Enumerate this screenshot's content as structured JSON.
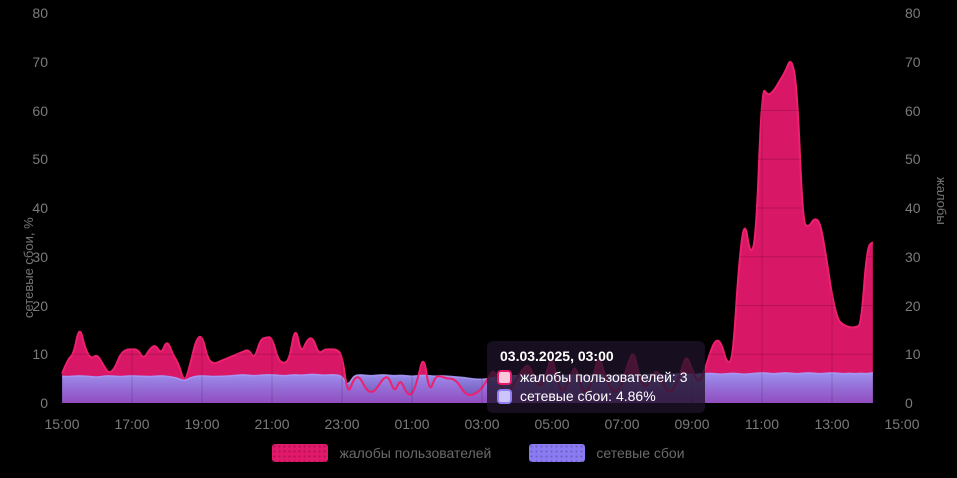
{
  "chart_data": {
    "type": "area",
    "x_start": "15:00",
    "x_step_minutes": 10,
    "x_tick_labels": [
      "15:00",
      "17:00",
      "19:00",
      "21:00",
      "23:00",
      "01:00",
      "03:00",
      "05:00",
      "07:00",
      "09:00",
      "11:00",
      "13:00",
      "15:00"
    ],
    "left_axis": {
      "label": "сетевые сбои, %",
      "min": 0,
      "max": 80,
      "ticks": [
        0,
        10,
        20,
        30,
        40,
        50,
        60,
        70,
        80
      ]
    },
    "right_axis": {
      "label": "жалобы",
      "min": 0,
      "max": 80,
      "ticks": [
        0,
        10,
        20,
        30,
        40,
        50,
        60,
        70,
        80
      ]
    },
    "grid": true,
    "legend_position": "bottom",
    "series": [
      {
        "name": "жалобы пользователей",
        "axis": "right",
        "color": "#e2186b",
        "line_color": "#ef206e",
        "values": [
          6,
          9,
          10,
          16,
          11,
          9,
          10,
          8,
          6,
          7,
          10,
          11,
          11,
          11,
          9,
          11,
          12,
          10,
          13,
          10,
          8,
          4,
          8,
          13,
          14,
          9,
          8,
          8.5,
          9,
          9.5,
          10,
          10.5,
          11,
          9,
          13,
          13.5,
          13.5,
          9,
          8,
          9,
          16,
          10,
          13,
          13.5,
          10,
          11,
          11,
          11,
          10,
          1.5,
          5,
          5.5,
          3,
          2,
          3,
          5,
          5.5,
          2,
          5,
          2,
          1.5,
          5,
          10,
          2,
          5.5,
          5.5,
          5,
          5,
          4,
          2,
          1.5,
          2,
          3,
          5,
          7,
          4,
          2,
          3,
          5,
          7,
          8,
          5,
          3,
          6,
          10,
          4,
          2,
          5,
          8,
          3,
          2,
          5,
          10,
          6,
          3,
          2,
          4,
          8,
          11,
          5,
          3,
          5,
          7,
          4,
          2,
          3,
          6,
          10,
          7,
          4,
          6,
          10,
          13,
          12.5,
          8,
          9,
          28,
          38,
          30,
          34,
          65,
          63,
          64,
          66,
          68,
          71,
          65,
          37,
          36,
          38,
          37,
          30,
          22,
          17,
          16,
          15.5,
          15.5,
          16,
          32,
          33
        ]
      },
      {
        "name": "сетевые сбои",
        "axis": "left",
        "unit": "%",
        "color": "#9a90e8",
        "line_color": "#a79bf7",
        "values": [
          5.5,
          5.4,
          5.5,
          5.6,
          5.5,
          5.4,
          5.3,
          5.5,
          5.6,
          5.5,
          5.4,
          5.5,
          5.6,
          5.5,
          5.5,
          5.4,
          5.5,
          5.6,
          5.5,
          5.3,
          5.0,
          4.5,
          5.2,
          5.5,
          5.6,
          5.5,
          5.4,
          5.5,
          5.5,
          5.6,
          5.7,
          5.8,
          5.7,
          5.6,
          5.7,
          5.8,
          5.8,
          5.7,
          5.6,
          5.7,
          5.8,
          5.7,
          5.8,
          5.9,
          5.8,
          5.7,
          5.8,
          5.8,
          5.5,
          3.5,
          5.6,
          5.8,
          5.7,
          5.6,
          5.7,
          5.8,
          5.7,
          5.6,
          5.7,
          5.6,
          5.5,
          5.6,
          5.7,
          5.6,
          5.5,
          5.6,
          5.5,
          5.4,
          5.3,
          5.2,
          5.0,
          4.9,
          4.86,
          5.0,
          5.2,
          5.4,
          5.5,
          5.6,
          5.6,
          5.7,
          5.6,
          5.5,
          5.6,
          5.7,
          5.8,
          5.7,
          5.6,
          5.7,
          5.8,
          5.7,
          5.6,
          5.7,
          5.8,
          5.7,
          5.6,
          5.7,
          5.8,
          5.7,
          5.6,
          5.7,
          5.8,
          5.9,
          5.8,
          5.7,
          5.8,
          5.9,
          6.0,
          5.9,
          5.8,
          5.9,
          6.0,
          6.1,
          6.0,
          5.9,
          6.0,
          6.1,
          6.0,
          5.9,
          6.0,
          6.1,
          6.2,
          6.1,
          6.0,
          6.1,
          6.2,
          6.1,
          6.0,
          6.1,
          6.2,
          6.1,
          6.0,
          6.1,
          6.2,
          6.1,
          6.0,
          6.1,
          6.0,
          6.1,
          6.0,
          6.2
        ]
      }
    ]
  },
  "tooltip": {
    "title": "03.03.2025, 03:00",
    "rows": [
      {
        "label": "жалобы пользователей",
        "value": "3",
        "swatch_fill": "#f9c7da",
        "swatch_border": "#e2186b"
      },
      {
        "label": "сетевые сбои",
        "value": "4.86%",
        "swatch_fill": "#cdc5f9",
        "swatch_border": "#8f7ff2"
      }
    ]
  },
  "legend": {
    "items": [
      {
        "label": "жалобы пользователей",
        "color": "#e2186b"
      },
      {
        "label": "сетевые сбои",
        "color": "#8b7bf3"
      }
    ]
  }
}
